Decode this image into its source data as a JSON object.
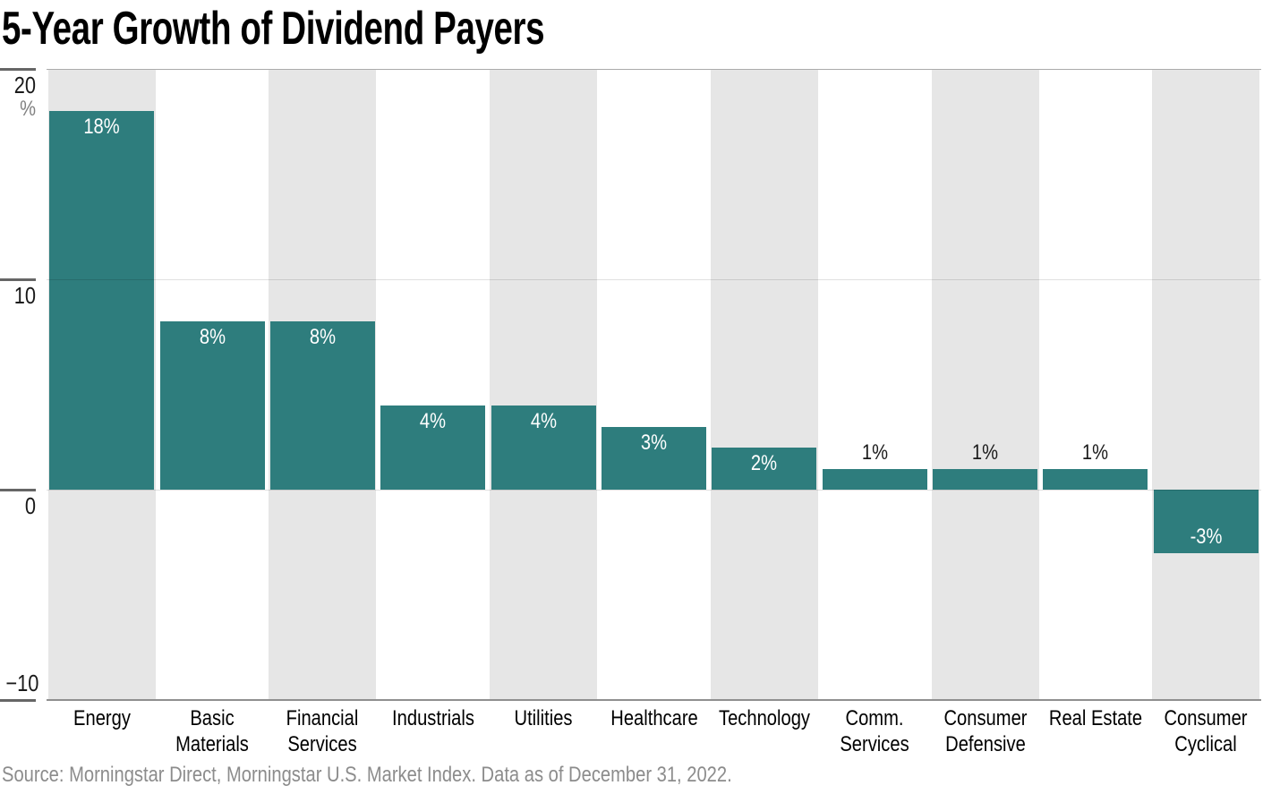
{
  "title": "5-Year Growth of Dividend Payers",
  "source": "Source: Morningstar Direct, Morningstar U.S. Market Index. Data as of December 31, 2022.",
  "colors": {
    "bar": "#2E7D7D",
    "stripe": "#E6E6E6",
    "label_inside": "#FFFFFF",
    "label_outside": "#1A1A1A",
    "unit": "#808080",
    "source_text": "#8C8C8C",
    "baseline": "#8F8F8F",
    "tick": "#666666"
  },
  "y_axis": {
    "unit": "%",
    "ticks": [
      {
        "value": 20,
        "label": "20"
      },
      {
        "value": 10,
        "label": "10"
      },
      {
        "value": 0,
        "label": "0"
      },
      {
        "value": -10,
        "label": "−10"
      }
    ]
  },
  "chart_data": {
    "type": "bar",
    "title": "5-Year Growth of Dividend Payers",
    "xlabel": "",
    "ylabel": "%",
    "ylim": [
      -10,
      20
    ],
    "grid": "horizontal",
    "legend": false,
    "categories": [
      "Energy",
      "Basic Materials",
      "Financial Services",
      "Industrials",
      "Utilities",
      "Healthcare",
      "Technology",
      "Comm. Services",
      "Consumer Defensive",
      "Real Estate",
      "Consumer Cyclical"
    ],
    "values": [
      18,
      8,
      8,
      4,
      4,
      3,
      2,
      1,
      1,
      1,
      -3
    ],
    "striped_columns": [
      0,
      2,
      4,
      6,
      8,
      10
    ],
    "bars": [
      {
        "category_lines": [
          "Energy"
        ],
        "value": 18,
        "value_label": "18%",
        "label_placement": "inside-top"
      },
      {
        "category_lines": [
          "Basic",
          "Materials"
        ],
        "value": 8,
        "value_label": "8%",
        "label_placement": "inside-top"
      },
      {
        "category_lines": [
          "Financial",
          "Services"
        ],
        "value": 8,
        "value_label": "8%",
        "label_placement": "inside-top"
      },
      {
        "category_lines": [
          "Industrials"
        ],
        "value": 4,
        "value_label": "4%",
        "label_placement": "inside-top"
      },
      {
        "category_lines": [
          "Utilities"
        ],
        "value": 4,
        "value_label": "4%",
        "label_placement": "inside-top"
      },
      {
        "category_lines": [
          "Healthcare"
        ],
        "value": 3,
        "value_label": "3%",
        "label_placement": "inside-top"
      },
      {
        "category_lines": [
          "Technology"
        ],
        "value": 2,
        "value_label": "2%",
        "label_placement": "inside-top"
      },
      {
        "category_lines": [
          "Comm.",
          "Services"
        ],
        "value": 1,
        "value_label": "1%",
        "label_placement": "above"
      },
      {
        "category_lines": [
          "Consumer",
          "Defensive"
        ],
        "value": 1,
        "value_label": "1%",
        "label_placement": "above"
      },
      {
        "category_lines": [
          "Real Estate"
        ],
        "value": 1,
        "value_label": "1%",
        "label_placement": "above"
      },
      {
        "category_lines": [
          "Consumer",
          "Cyclical"
        ],
        "value": -3,
        "value_label": "-3%",
        "label_placement": "inside-bottom"
      }
    ]
  }
}
